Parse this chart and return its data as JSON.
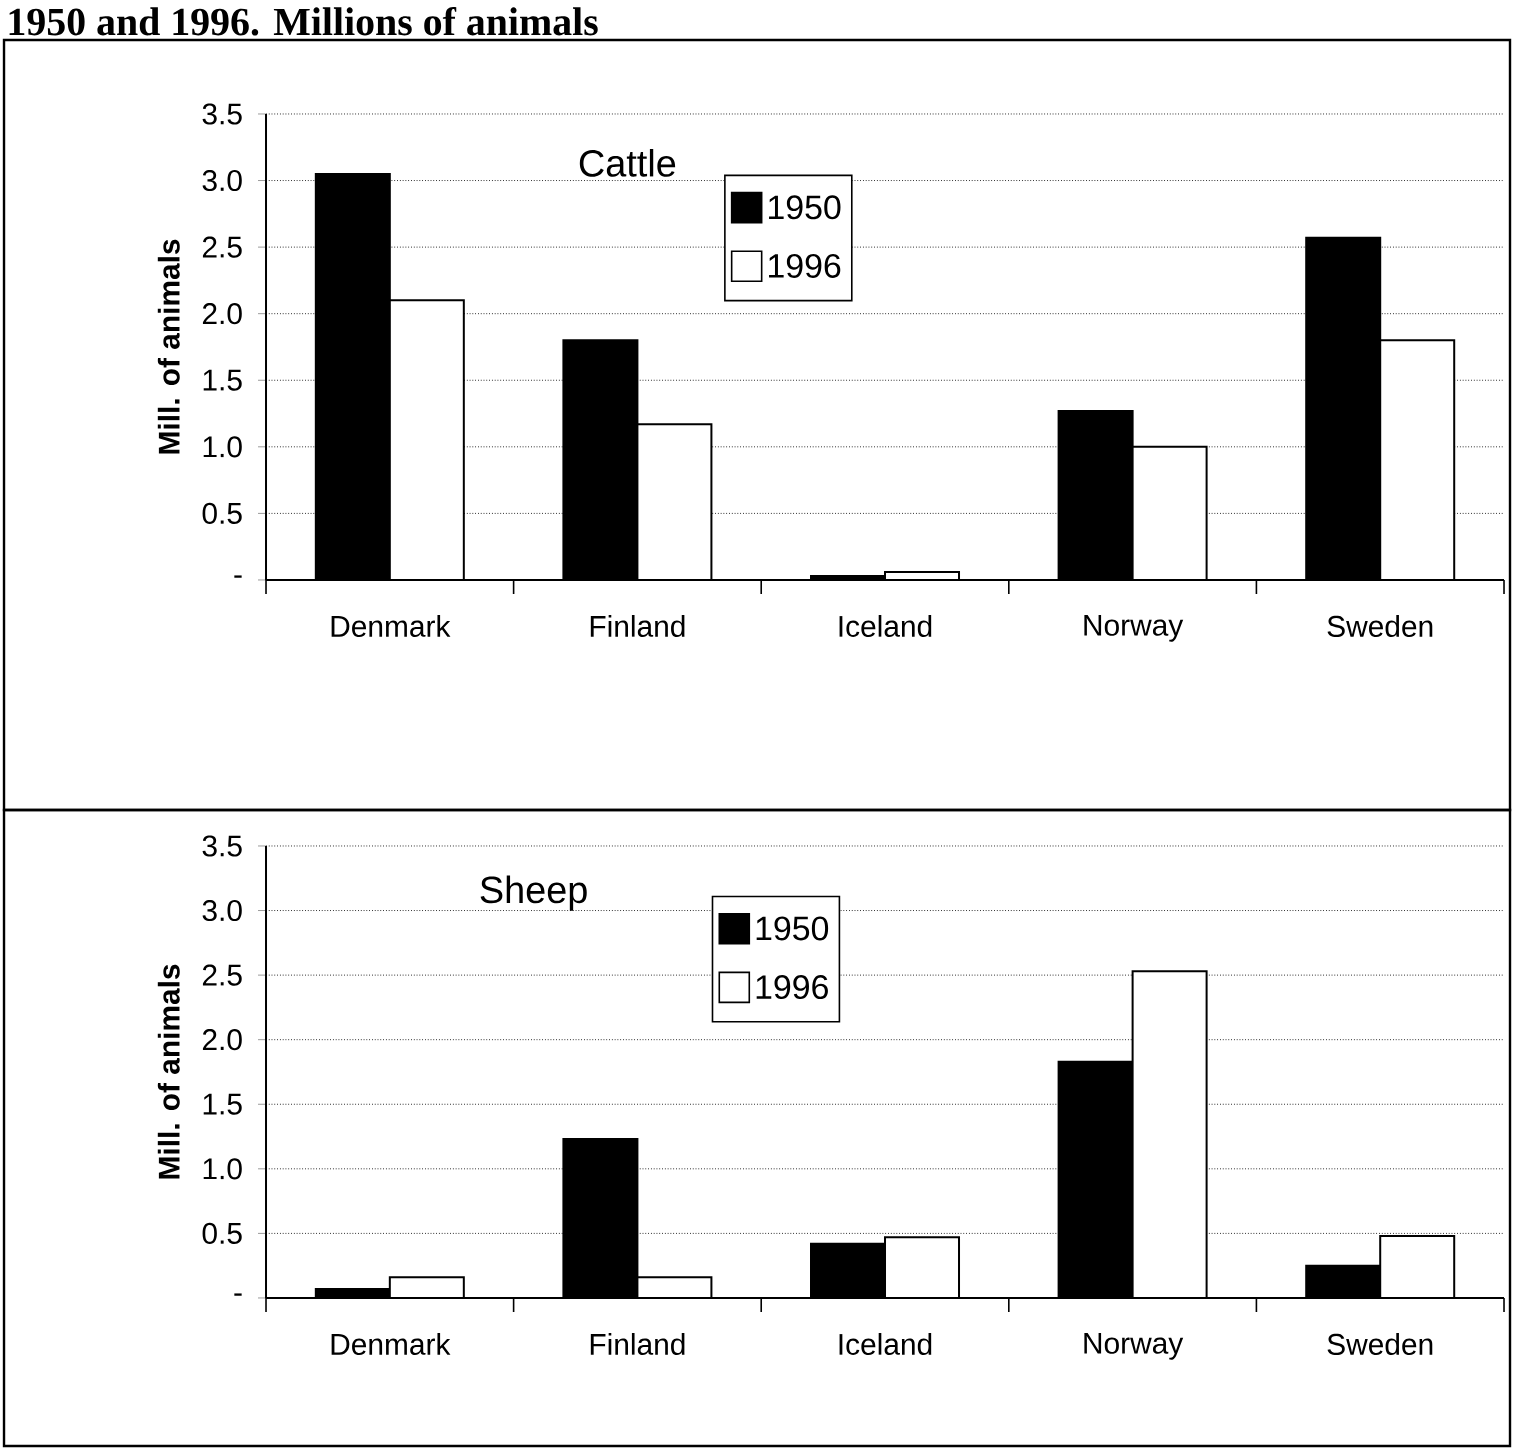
{
  "chart_data": [
    {
      "type": "bar",
      "title": "1950 and 1996. Millions of animals",
      "subtitle": "Cattle",
      "ylabel": "Mill. of animals",
      "categories": [
        "Denmark",
        "Finland",
        "Iceland",
        "Norway",
        "Sweden"
      ],
      "series": [
        {
          "name": "1950",
          "color": "#000000",
          "values": [
            3.05,
            1.8,
            0.03,
            1.27,
            2.57
          ]
        },
        {
          "name": "1996",
          "color": "#ffffff",
          "values": [
            2.1,
            1.17,
            0.06,
            1.0,
            1.8
          ]
        }
      ],
      "ylim": [
        0,
        3.5
      ],
      "yticks": [
        {
          "value": 0,
          "label": "-"
        },
        {
          "value": 0.5,
          "label": "0.5"
        },
        {
          "value": 1,
          "label": "1.0"
        },
        {
          "value": 1.5,
          "label": "1.5"
        },
        {
          "value": 2,
          "label": "2.0"
        },
        {
          "value": 2.5,
          "label": "2.5"
        },
        {
          "value": 3,
          "label": "3.0"
        },
        {
          "value": 3.5,
          "label": "3.5"
        }
      ],
      "grid": "y",
      "legend": "top"
    },
    {
      "type": "bar",
      "subtitle": "Sheep",
      "ylabel": "Mill. of animals",
      "categories": [
        "Denmark",
        "Finland",
        "Iceland",
        "Norway",
        "Sweden"
      ],
      "series": [
        {
          "name": "1950",
          "color": "#000000",
          "values": [
            0.07,
            1.23,
            0.42,
            1.83,
            0.25
          ]
        },
        {
          "name": "1996",
          "color": "#ffffff",
          "values": [
            0.16,
            0.16,
            0.47,
            2.53,
            0.48
          ]
        }
      ],
      "ylim": [
        0,
        3.5
      ],
      "yticks": [
        {
          "value": 0,
          "label": "-"
        },
        {
          "value": 0.5,
          "label": "0.5"
        },
        {
          "value": 1,
          "label": "1.0"
        },
        {
          "value": 1.5,
          "label": "1.5"
        },
        {
          "value": 2,
          "label": "2.0"
        },
        {
          "value": 2.5,
          "label": "2.5"
        },
        {
          "value": 3,
          "label": "3.0"
        },
        {
          "value": 3.5,
          "label": "3.5"
        }
      ],
      "grid": "y",
      "legend": "top"
    }
  ]
}
